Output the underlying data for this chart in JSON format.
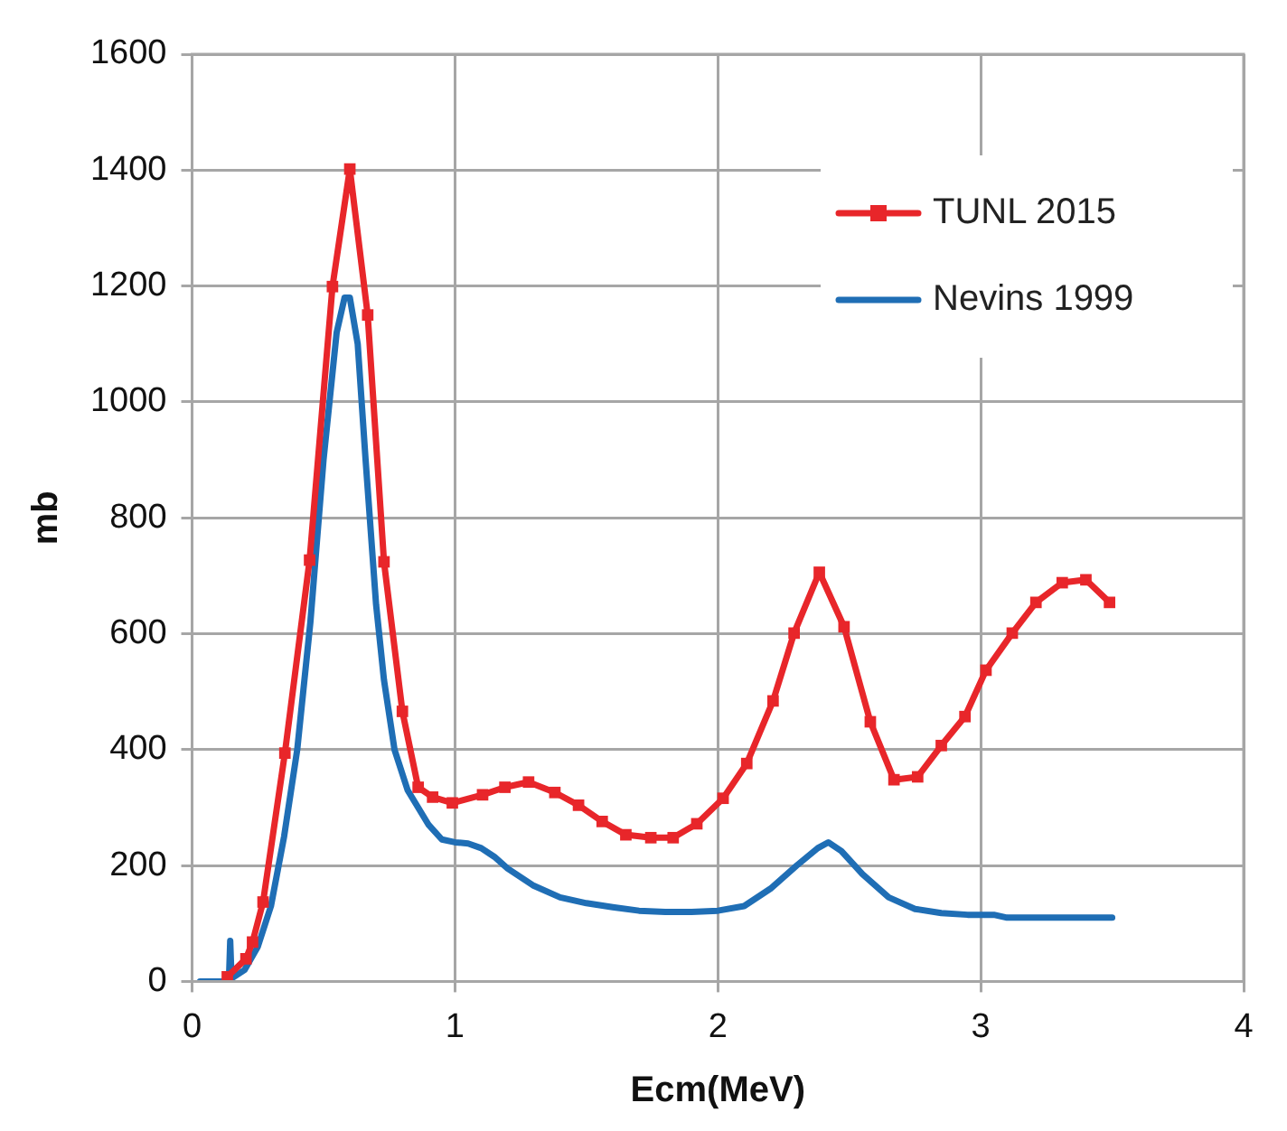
{
  "chart_data": {
    "type": "line",
    "xlabel": "Ecm(MeV)",
    "ylabel": "mb",
    "xlim": [
      0,
      4
    ],
    "xticks": [
      0,
      1,
      2,
      3,
      4
    ],
    "ylim": [
      0,
      1600
    ],
    "yticks": [
      0,
      200,
      400,
      600,
      800,
      1000,
      1200,
      1400,
      1600
    ],
    "grid": true,
    "legend": "top right",
    "series": [
      {
        "name": "TUNL 2015",
        "color": "#e8262a",
        "marker": "square",
        "x": [
          0.134,
          0.205,
          0.23,
          0.27,
          0.353,
          0.447,
          0.534,
          0.6,
          0.668,
          0.73,
          0.8,
          0.86,
          0.915,
          0.99,
          1.105,
          1.19,
          1.28,
          1.38,
          1.47,
          1.56,
          1.65,
          1.745,
          1.83,
          1.92,
          2.02,
          2.11,
          2.21,
          2.29,
          2.386,
          2.48,
          2.58,
          2.67,
          2.76,
          2.85,
          2.94,
          3.02,
          3.12,
          3.21,
          3.31,
          3.4,
          3.49
        ],
        "values": [
          8,
          39,
          68,
          137,
          394,
          727,
          1199,
          1402,
          1150,
          724,
          466,
          335,
          318,
          308,
          322,
          335,
          344,
          326,
          304,
          276,
          253,
          248,
          248,
          272,
          316,
          376,
          484,
          601,
          706,
          612,
          448,
          348,
          353,
          407,
          457,
          537,
          601,
          654,
          688,
          693,
          654
        ]
      },
      {
        "name": "Nevins 1999",
        "color": "#1f6eb5",
        "marker": "none",
        "x": [
          0.03,
          0.14,
          0.145,
          0.15,
          0.2,
          0.25,
          0.3,
          0.35,
          0.4,
          0.45,
          0.5,
          0.55,
          0.58,
          0.6,
          0.63,
          0.66,
          0.7,
          0.73,
          0.77,
          0.82,
          0.9,
          0.95,
          1.0,
          1.05,
          1.1,
          1.15,
          1.2,
          1.3,
          1.4,
          1.5,
          1.6,
          1.7,
          1.8,
          1.9,
          2.0,
          2.1,
          2.2,
          2.3,
          2.38,
          2.42,
          2.47,
          2.55,
          2.65,
          2.75,
          2.85,
          2.95,
          3.05,
          3.1,
          3.3,
          3.5
        ],
        "values": [
          0,
          0,
          70,
          5,
          20,
          60,
          130,
          250,
          400,
          620,
          900,
          1120,
          1180,
          1180,
          1100,
          900,
          650,
          520,
          400,
          330,
          270,
          245,
          240,
          238,
          230,
          215,
          195,
          165,
          145,
          135,
          128,
          122,
          120,
          120,
          122,
          130,
          160,
          200,
          230,
          240,
          225,
          185,
          145,
          125,
          118,
          115,
          115,
          110,
          110,
          110
        ]
      }
    ]
  }
}
